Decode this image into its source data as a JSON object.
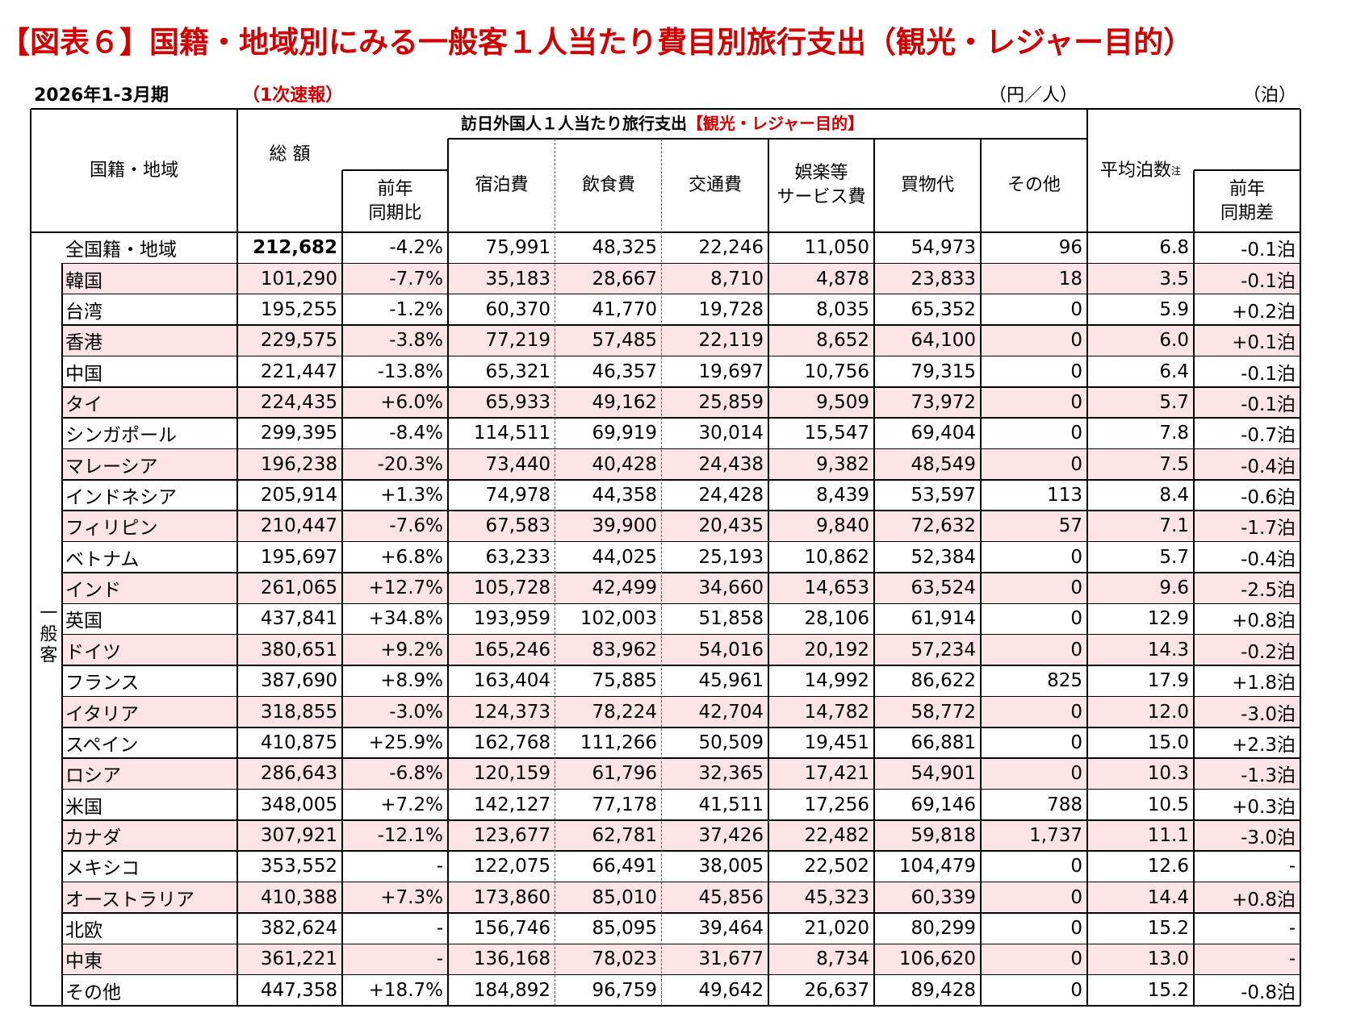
{
  "title": "【図表６】国籍・地域別にみる一般客１人当たり費目別旅行支出（観光・レジャー目的）",
  "period": "2026年1-3月期",
  "status": "（1次速報）",
  "unit_yen": "（円／人）",
  "unit_nights": "（泊）",
  "table": {
    "header": {
      "region": "国籍・地域",
      "total": "総 額",
      "yoy": "前年\n同期比",
      "group": "訪日外国人１人当たり旅行支出",
      "group_purpose": "【観光・レジャー目的】",
      "lodging": "宿泊費",
      "food": "飲食費",
      "transport": "交通費",
      "entertainment": "娯楽等\nサービス費",
      "shopping": "買物代",
      "other": "その他",
      "nights": "平均泊数",
      "note_mark": "注",
      "nights_diff": "前年\n同期差",
      "segment": "一般客"
    },
    "rows": [
      [
        "全国籍・地域",
        "212,682",
        "-4.2%",
        "75,991",
        "48,325",
        "22,246",
        "11,050",
        "54,973",
        "96",
        "6.8",
        "-0.1泊"
      ],
      [
        "韓国",
        "101,290",
        "-7.7%",
        "35,183",
        "28,667",
        "8,710",
        "4,878",
        "23,833",
        "18",
        "3.5",
        "-0.1泊"
      ],
      [
        "台湾",
        "195,255",
        "-1.2%",
        "60,370",
        "41,770",
        "19,728",
        "8,035",
        "65,352",
        "0",
        "5.9",
        "+0.2泊"
      ],
      [
        "香港",
        "229,575",
        "-3.8%",
        "77,219",
        "57,485",
        "22,119",
        "8,652",
        "64,100",
        "0",
        "6.0",
        "+0.1泊"
      ],
      [
        "中国",
        "221,447",
        "-13.8%",
        "65,321",
        "46,357",
        "19,697",
        "10,756",
        "79,315",
        "0",
        "6.4",
        "-0.1泊"
      ],
      [
        "タイ",
        "224,435",
        "+6.0%",
        "65,933",
        "49,162",
        "25,859",
        "9,509",
        "73,972",
        "0",
        "5.7",
        "-0.1泊"
      ],
      [
        "シンガポール",
        "299,395",
        "-8.4%",
        "114,511",
        "69,919",
        "30,014",
        "15,547",
        "69,404",
        "0",
        "7.8",
        "-0.7泊"
      ],
      [
        "マレーシア",
        "196,238",
        "-20.3%",
        "73,440",
        "40,428",
        "24,438",
        "9,382",
        "48,549",
        "0",
        "7.5",
        "-0.4泊"
      ],
      [
        "インドネシア",
        "205,914",
        "+1.3%",
        "74,978",
        "44,358",
        "24,428",
        "8,439",
        "53,597",
        "113",
        "8.4",
        "-0.6泊"
      ],
      [
        "フィリピン",
        "210,447",
        "-7.6%",
        "67,583",
        "39,900",
        "20,435",
        "9,840",
        "72,632",
        "57",
        "7.1",
        "-1.7泊"
      ],
      [
        "ベトナム",
        "195,697",
        "+6.8%",
        "63,233",
        "44,025",
        "25,193",
        "10,862",
        "52,384",
        "0",
        "5.7",
        "-0.4泊"
      ],
      [
        "インド",
        "261,065",
        "+12.7%",
        "105,728",
        "42,499",
        "34,660",
        "14,653",
        "63,524",
        "0",
        "9.6",
        "-2.5泊"
      ],
      [
        "英国",
        "437,841",
        "+34.8%",
        "193,959",
        "102,003",
        "51,858",
        "28,106",
        "61,914",
        "0",
        "12.9",
        "+0.8泊"
      ],
      [
        "ドイツ",
        "380,651",
        "+9.2%",
        "165,246",
        "83,962",
        "54,016",
        "20,192",
        "57,234",
        "0",
        "14.3",
        "-0.2泊"
      ],
      [
        "フランス",
        "387,690",
        "+8.9%",
        "163,404",
        "75,885",
        "45,961",
        "14,992",
        "86,622",
        "825",
        "17.9",
        "+1.8泊"
      ],
      [
        "イタリア",
        "318,855",
        "-3.0%",
        "124,373",
        "78,224",
        "42,704",
        "14,782",
        "58,772",
        "0",
        "12.0",
        "-3.0泊"
      ],
      [
        "スペイン",
        "410,875",
        "+25.9%",
        "162,768",
        "111,266",
        "50,509",
        "19,451",
        "66,881",
        "0",
        "15.0",
        "+2.3泊"
      ],
      [
        "ロシア",
        "286,643",
        "-6.8%",
        "120,159",
        "61,796",
        "32,365",
        "17,421",
        "54,901",
        "0",
        "10.3",
        "-1.3泊"
      ],
      [
        "米国",
        "348,005",
        "+7.2%",
        "142,127",
        "77,178",
        "41,511",
        "17,256",
        "69,146",
        "788",
        "10.5",
        "+0.3泊"
      ],
      [
        "カナダ",
        "307,921",
        "-12.1%",
        "123,677",
        "62,781",
        "37,426",
        "22,482",
        "59,818",
        "1,737",
        "11.1",
        "-3.0泊"
      ],
      [
        "メキシコ",
        "353,552",
        "-",
        "122,075",
        "66,491",
        "38,005",
        "22,502",
        "104,479",
        "0",
        "12.6",
        "-"
      ],
      [
        "オーストラリア",
        "410,388",
        "+7.3%",
        "173,860",
        "85,010",
        "45,856",
        "45,323",
        "60,339",
        "0",
        "14.4",
        "+0.8泊"
      ],
      [
        "北欧",
        "382,624",
        "-",
        "156,746",
        "85,095",
        "39,464",
        "21,020",
        "80,299",
        "0",
        "15.2",
        "-"
      ],
      [
        "中東",
        "361,221",
        "-",
        "136,168",
        "78,023",
        "31,677",
        "8,734",
        "106,620",
        "0",
        "13.0",
        "-"
      ],
      [
        "その他",
        "447,358",
        "+18.7%",
        "184,892",
        "96,759",
        "49,642",
        "26,637",
        "89,428",
        "0",
        "15.2",
        "-0.8泊"
      ]
    ]
  }
}
